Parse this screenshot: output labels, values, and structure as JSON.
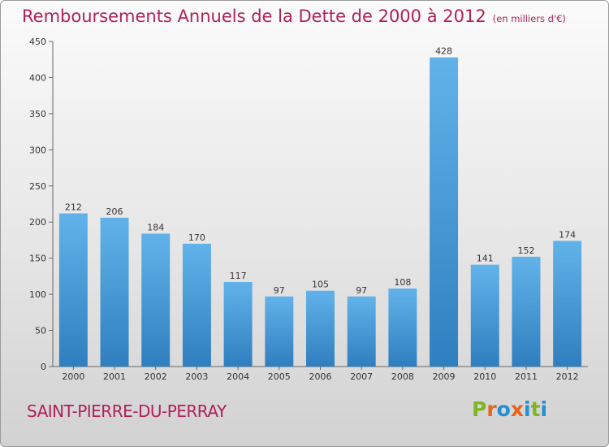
{
  "header": {
    "title": "Remboursements Annuels de la Dette de 2000 à 2012",
    "subtitle": "(en milliers d'€)"
  },
  "footer": {
    "commune": "SAINT-PIERRE-DU-PERRAY",
    "logo": [
      "P",
      "r",
      "o",
      "x",
      "i",
      "t",
      "i"
    ]
  },
  "colors": {
    "title": "#b0205a",
    "bar_top": "#62b2ea",
    "bar_bottom": "#2f7fc0",
    "logo": [
      "#7fb528",
      "#e9631b",
      "#1f8fd6",
      "#e9631b",
      "#1f8fd6",
      "#7fb528",
      "#1f8fd6"
    ]
  },
  "chart_data": {
    "type": "bar",
    "categories": [
      "2000",
      "2001",
      "2002",
      "2003",
      "2004",
      "2005",
      "2006",
      "2007",
      "2008",
      "2009",
      "2010",
      "2011",
      "2012"
    ],
    "values": [
      212,
      206,
      184,
      170,
      117,
      97,
      105,
      97,
      108,
      428,
      141,
      152,
      174
    ],
    "yticks": [
      0,
      50,
      100,
      150,
      200,
      250,
      300,
      350,
      400,
      450
    ],
    "ylim": [
      0,
      450
    ],
    "grid": false,
    "legend": "none"
  }
}
